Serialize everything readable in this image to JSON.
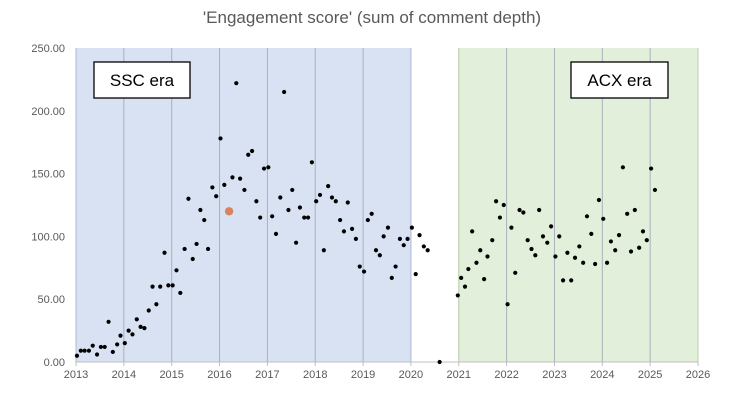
{
  "chart_data": {
    "type": "scatter",
    "title": "'Engagement score' (sum of comment depth)",
    "xlabel": "",
    "ylabel": "",
    "xlim": [
      2013,
      2026
    ],
    "ylim": [
      0,
      250
    ],
    "x_ticks": [
      "2013",
      "2014",
      "2015",
      "2016",
      "2017",
      "2018",
      "2019",
      "2020",
      "2021",
      "2022",
      "2023",
      "2024",
      "2025",
      "2026"
    ],
    "y_ticks": [
      "0.00",
      "50.00",
      "100.00",
      "150.00",
      "200.00",
      "250.00"
    ],
    "grid": "vertical",
    "colors": {
      "point": "#000000",
      "highlight": "#d9825b",
      "ssc_band": "#d9e2f3",
      "acx_band": "#e2efda",
      "ssc_band_line": "#aab8d0",
      "acx_band_line": "#b5cfa5"
    },
    "regions": [
      {
        "label": "SSC era",
        "start": 2013,
        "end": 2020
      },
      {
        "label": "ACX era",
        "start": 2021,
        "end": 2026
      }
    ],
    "highlight_point": {
      "x": 2016.2,
      "y": 120
    },
    "points": [
      [
        2013.02,
        5
      ],
      [
        2013.1,
        9
      ],
      [
        2013.18,
        9
      ],
      [
        2013.27,
        9
      ],
      [
        2013.35,
        13
      ],
      [
        2013.44,
        6
      ],
      [
        2013.52,
        12
      ],
      [
        2013.6,
        12
      ],
      [
        2013.68,
        32
      ],
      [
        2013.77,
        8
      ],
      [
        2013.86,
        14
      ],
      [
        2013.93,
        21
      ],
      [
        2014.02,
        15
      ],
      [
        2014.1,
        25
      ],
      [
        2014.18,
        22
      ],
      [
        2014.27,
        34
      ],
      [
        2014.35,
        28
      ],
      [
        2014.43,
        27
      ],
      [
        2014.52,
        41
      ],
      [
        2014.6,
        60
      ],
      [
        2014.68,
        46
      ],
      [
        2014.76,
        60
      ],
      [
        2014.85,
        87
      ],
      [
        2014.93,
        61
      ],
      [
        2015.02,
        61
      ],
      [
        2015.1,
        73
      ],
      [
        2015.18,
        55
      ],
      [
        2015.27,
        90
      ],
      [
        2015.35,
        130
      ],
      [
        2015.44,
        82
      ],
      [
        2015.52,
        94
      ],
      [
        2015.6,
        121
      ],
      [
        2015.68,
        113
      ],
      [
        2015.76,
        90
      ],
      [
        2015.85,
        139
      ],
      [
        2015.93,
        132
      ],
      [
        2016.02,
        178
      ],
      [
        2016.1,
        141
      ],
      [
        2016.27,
        147
      ],
      [
        2016.35,
        222
      ],
      [
        2016.43,
        146
      ],
      [
        2016.52,
        137
      ],
      [
        2016.6,
        165
      ],
      [
        2016.68,
        168
      ],
      [
        2016.77,
        128
      ],
      [
        2016.85,
        115
      ],
      [
        2016.93,
        154
      ],
      [
        2017.02,
        155
      ],
      [
        2017.1,
        116
      ],
      [
        2017.18,
        102
      ],
      [
        2017.27,
        131
      ],
      [
        2017.35,
        215
      ],
      [
        2017.44,
        121
      ],
      [
        2017.52,
        137
      ],
      [
        2017.6,
        95
      ],
      [
        2017.68,
        123
      ],
      [
        2017.77,
        115
      ],
      [
        2017.85,
        115
      ],
      [
        2017.93,
        159
      ],
      [
        2018.02,
        128
      ],
      [
        2018.1,
        133
      ],
      [
        2018.18,
        89
      ],
      [
        2018.27,
        140
      ],
      [
        2018.35,
        131
      ],
      [
        2018.43,
        128
      ],
      [
        2018.52,
        113
      ],
      [
        2018.6,
        104
      ],
      [
        2018.68,
        127
      ],
      [
        2018.77,
        106
      ],
      [
        2018.85,
        98
      ],
      [
        2018.93,
        76
      ],
      [
        2019.02,
        72
      ],
      [
        2019.1,
        113
      ],
      [
        2019.18,
        118
      ],
      [
        2019.27,
        89
      ],
      [
        2019.35,
        85
      ],
      [
        2019.43,
        100
      ],
      [
        2019.52,
        107
      ],
      [
        2019.6,
        67
      ],
      [
        2019.68,
        76
      ],
      [
        2019.77,
        98
      ],
      [
        2019.85,
        93
      ],
      [
        2019.93,
        98
      ],
      [
        2020.02,
        107
      ],
      [
        2020.1,
        70
      ],
      [
        2020.18,
        101
      ],
      [
        2020.27,
        92
      ],
      [
        2020.35,
        89
      ],
      [
        2020.6,
        0
      ],
      [
        2020.98,
        53
      ],
      [
        2021.05,
        67
      ],
      [
        2021.13,
        60
      ],
      [
        2021.2,
        74
      ],
      [
        2021.28,
        104
      ],
      [
        2021.37,
        79
      ],
      [
        2021.45,
        89
      ],
      [
        2021.53,
        66
      ],
      [
        2021.6,
        84
      ],
      [
        2021.7,
        97
      ],
      [
        2021.78,
        128
      ],
      [
        2021.86,
        115
      ],
      [
        2021.94,
        125
      ],
      [
        2022.02,
        46
      ],
      [
        2022.1,
        107
      ],
      [
        2022.18,
        71
      ],
      [
        2022.27,
        121
      ],
      [
        2022.35,
        119
      ],
      [
        2022.44,
        97
      ],
      [
        2022.52,
        90
      ],
      [
        2022.6,
        85
      ],
      [
        2022.68,
        121
      ],
      [
        2022.76,
        100
      ],
      [
        2022.85,
        95
      ],
      [
        2022.93,
        108
      ],
      [
        2023.02,
        84
      ],
      [
        2023.1,
        100
      ],
      [
        2023.18,
        65
      ],
      [
        2023.27,
        87
      ],
      [
        2023.35,
        65
      ],
      [
        2023.43,
        83
      ],
      [
        2023.52,
        92
      ],
      [
        2023.6,
        79
      ],
      [
        2023.68,
        116
      ],
      [
        2023.77,
        102
      ],
      [
        2023.85,
        78
      ],
      [
        2023.93,
        129
      ],
      [
        2024.02,
        114
      ],
      [
        2024.1,
        79
      ],
      [
        2024.18,
        96
      ],
      [
        2024.27,
        89
      ],
      [
        2024.35,
        101
      ],
      [
        2024.43,
        155
      ],
      [
        2024.52,
        118
      ],
      [
        2024.6,
        88
      ],
      [
        2024.68,
        121
      ],
      [
        2024.77,
        91
      ],
      [
        2024.85,
        104
      ],
      [
        2024.93,
        97
      ],
      [
        2025.02,
        154
      ],
      [
        2025.1,
        137
      ]
    ]
  }
}
